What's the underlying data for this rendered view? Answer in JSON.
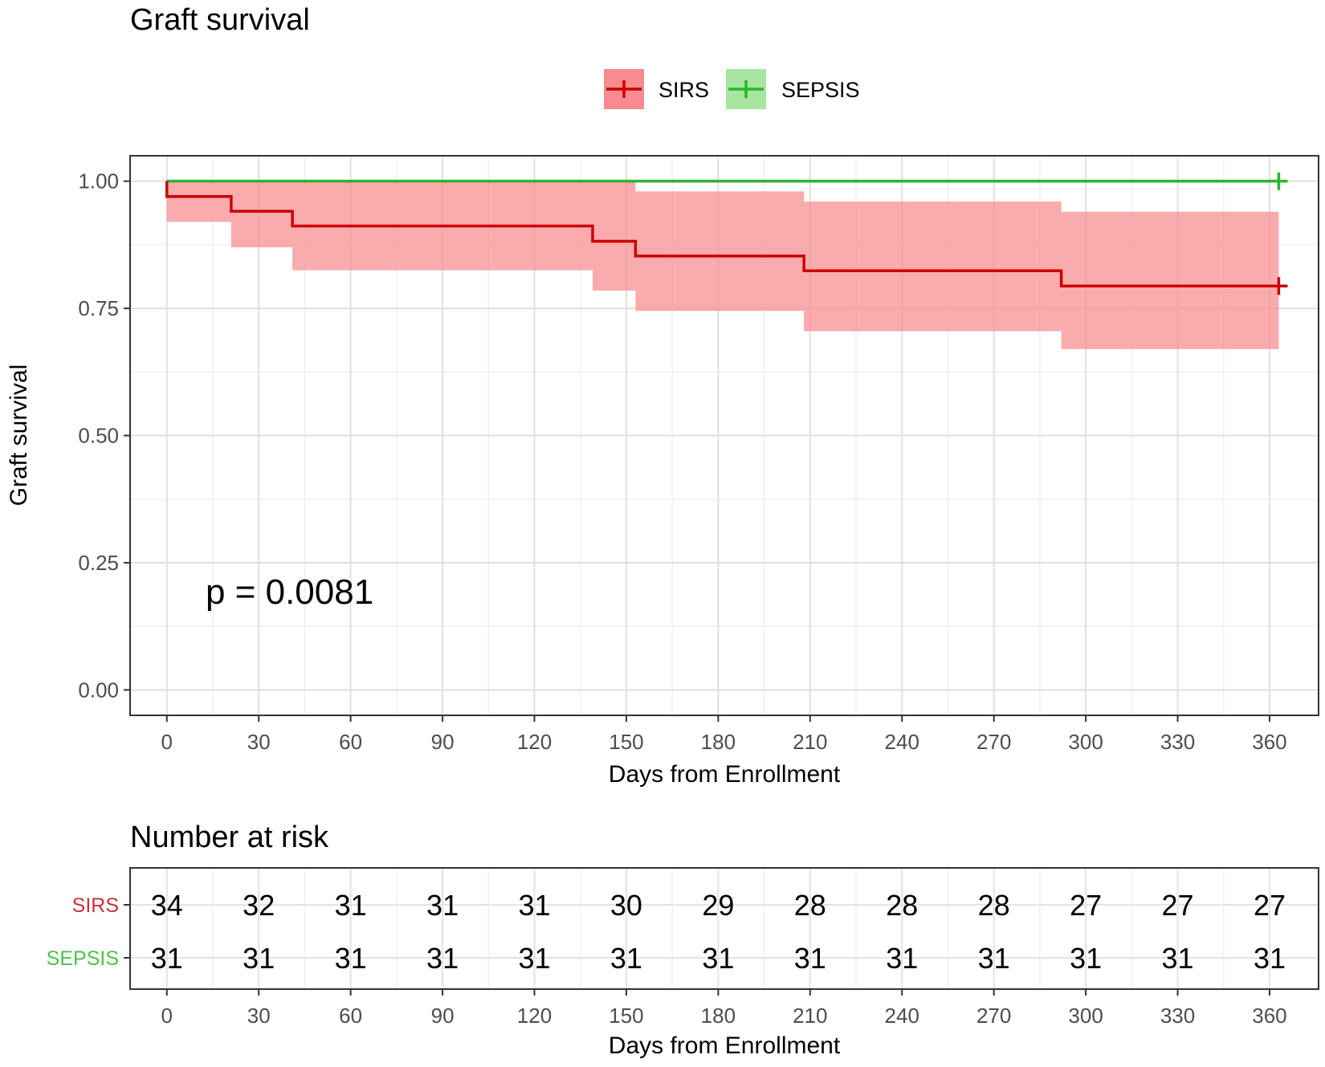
{
  "chart_data": [
    {
      "type": "line",
      "subtype": "kaplan-meier",
      "title": "Graft survival",
      "xlabel": "Days from Enrollment",
      "ylabel": "Graft survival",
      "xlim": [
        -12,
        376
      ],
      "ylim": [
        -0.05,
        1.05
      ],
      "xticks": [
        0,
        30,
        60,
        90,
        120,
        150,
        180,
        210,
        240,
        270,
        300,
        330,
        360
      ],
      "xtick_labels": [
        "0",
        "30",
        "60",
        "90",
        "120",
        "150",
        "180",
        "210",
        "240",
        "270",
        "300",
        "330",
        "360"
      ],
      "yticks": [
        0,
        0.25,
        0.5,
        0.75,
        1.0
      ],
      "ytick_labels": [
        "0.00",
        "0.25",
        "0.50",
        "0.75",
        "1.00"
      ],
      "grid": true,
      "legend_position": "top",
      "annotation": "p = 0.0081",
      "series": [
        {
          "name": "SIRS",
          "color": "#cc0000",
          "band_color": "#f78b8f",
          "steps": [
            [
              0,
              0.97
            ],
            [
              21,
              0.941
            ],
            [
              41,
              0.912
            ],
            [
              139,
              0.882
            ],
            [
              153,
              0.853
            ],
            [
              208,
              0.824
            ],
            [
              292,
              0.794
            ],
            [
              363,
              0.794
            ]
          ],
          "band": [
            [
              0,
              0.92,
              1.0
            ],
            [
              21,
              0.87,
              1.0
            ],
            [
              41,
              0.825,
              1.0
            ],
            [
              139,
              0.785,
              1.0
            ],
            [
              153,
              0.745,
              0.98
            ],
            [
              208,
              0.705,
              0.96
            ],
            [
              292,
              0.67,
              0.94
            ],
            [
              363,
              0.67,
              0.94
            ]
          ],
          "start_value": 1.0,
          "censor_x": 363
        },
        {
          "name": "SEPSIS",
          "color": "#2bb52b",
          "band_color": "#a6e6a0",
          "steps": [
            [
              0,
              1.0
            ],
            [
              363,
              1.0
            ]
          ],
          "start_value": 1.0,
          "censor_x": 363
        }
      ]
    },
    {
      "type": "table",
      "title": "Number at risk",
      "xlabel": "Days from Enrollment",
      "x": [
        0,
        30,
        60,
        90,
        120,
        150,
        180,
        210,
        240,
        270,
        300,
        330,
        360
      ],
      "xtick_labels": [
        "0",
        "30",
        "60",
        "90",
        "120",
        "150",
        "180",
        "210",
        "240",
        "270",
        "300",
        "330",
        "360"
      ],
      "rows": [
        {
          "name": "SIRS",
          "color": "#c8323c",
          "values": [
            "34",
            "32",
            "31",
            "31",
            "31",
            "30",
            "29",
            "28",
            "28",
            "28",
            "27",
            "27",
            "27"
          ]
        },
        {
          "name": "SEPSIS",
          "color": "#4cc24c",
          "values": [
            "31",
            "31",
            "31",
            "31",
            "31",
            "31",
            "31",
            "31",
            "31",
            "31",
            "31",
            "31",
            "31"
          ]
        }
      ]
    }
  ]
}
